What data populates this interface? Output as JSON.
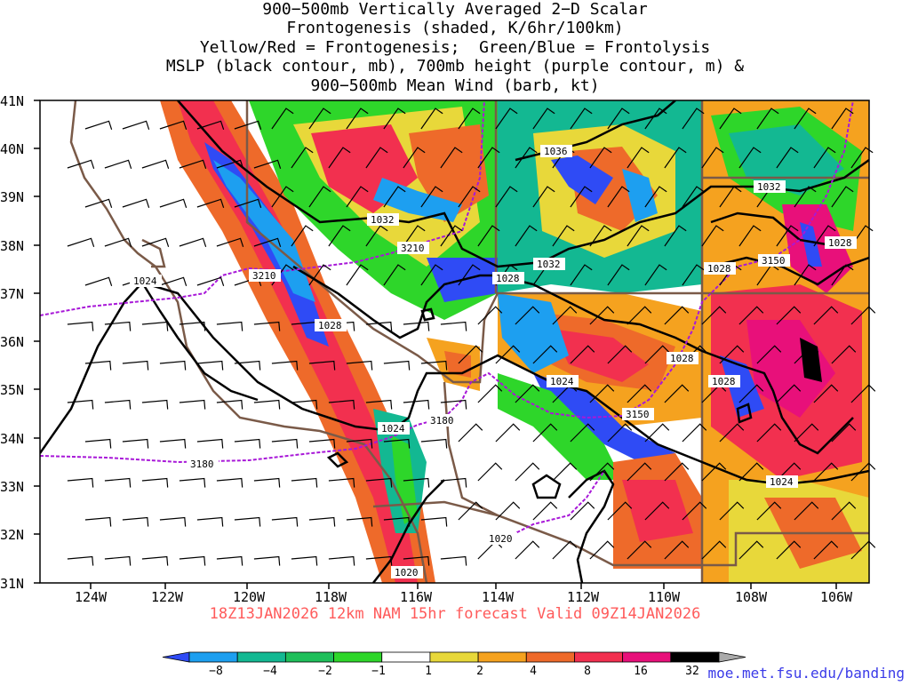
{
  "title_lines": [
    "900−500mb Vertically Averaged 2−D Scalar",
    "Frontogenesis (shaded, K/6hr/100km)",
    "Yellow/Red = Frontogenesis;  Green/Blue = Frontolysis",
    "MSLP (black contour, mb), 700mb height (purple contour, m) &",
    "900−500mb Mean Wind (barb, kt)"
  ],
  "lat_labels": [
    "41N",
    "40N",
    "39N",
    "38N",
    "37N",
    "36N",
    "35N",
    "34N",
    "33N",
    "32N",
    "31N"
  ],
  "lon_labels": [
    "124W",
    "122W",
    "120W",
    "118W",
    "116W",
    "114W",
    "112W",
    "110W",
    "108W",
    "106W"
  ],
  "contour_labels_mslp": [
    {
      "text": "1036"
    },
    {
      "text": "1032"
    },
    {
      "text": "1032"
    },
    {
      "text": "1032"
    },
    {
      "text": "1028"
    },
    {
      "text": "1028"
    },
    {
      "text": "1028"
    },
    {
      "text": "1028"
    },
    {
      "text": "1028"
    },
    {
      "text": "1028"
    },
    {
      "text": "1024"
    },
    {
      "text": "1024"
    },
    {
      "text": "1024"
    },
    {
      "text": "1024"
    },
    {
      "text": "1020"
    },
    {
      "text": "1020"
    }
  ],
  "contour_labels_height": [
    {
      "text": "3210"
    },
    {
      "text": "3210"
    },
    {
      "text": "3180"
    },
    {
      "text": "3180"
    },
    {
      "text": "3150"
    },
    {
      "text": "3150"
    }
  ],
  "footer": "18Z13JAN2026 12km NAM 15hr forecast Valid 09Z14JAN2026",
  "colorbar": {
    "labels": [
      "−8",
      "−4",
      "−2",
      "−1",
      "1",
      "2",
      "4",
      "8",
      "16",
      "32"
    ],
    "colors": [
      "#2f4bf5",
      "#1d9ff0",
      "#13b892",
      "#1fbf5a",
      "#2ed62a",
      "#ffffff",
      "#e8d83a",
      "#f5a21f",
      "#ee6a2a",
      "#f2304f",
      "#e8107a",
      "#000000",
      "#aaaaaa"
    ]
  },
  "credit": "moe.met.fsu.edu/banding",
  "colors": {
    "mslp_contour": "#000000",
    "height_contour": "#a818d8",
    "border": "#7a5a48",
    "footer_text": "#ff5a5a",
    "credit_text": "#3a3ae8"
  }
}
